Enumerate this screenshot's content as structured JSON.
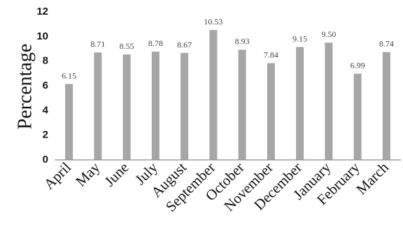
{
  "chart_data": {
    "type": "bar",
    "categories": [
      "April",
      "May",
      "June",
      "July",
      "August",
      "September",
      "October",
      "November",
      "December",
      "January",
      "February",
      "March"
    ],
    "values": [
      6.15,
      8.71,
      8.55,
      8.78,
      8.67,
      10.53,
      8.93,
      7.84,
      9.15,
      9.5,
      6.99,
      8.74
    ],
    "data_labels": [
      "6.15",
      "8.71",
      "8.55",
      "8.78",
      "8.67",
      "10.53",
      "8.93",
      "7.84",
      "9.15",
      "9.50",
      "6.99",
      "8.74"
    ],
    "ylabel": "Percentage",
    "ylim": [
      0,
      12
    ],
    "yticks": [
      0,
      2,
      4,
      6,
      8,
      10,
      12
    ],
    "grid": false,
    "legend": "none",
    "bar_color": "#a6a6a6"
  }
}
